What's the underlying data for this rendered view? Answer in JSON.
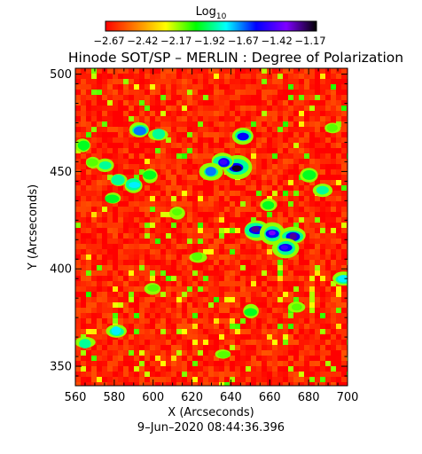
{
  "chart_data": {
    "type": "heatmap",
    "title": "Hinode SOT/SP – MERLIN : Degree of Polarization",
    "colorbar": {
      "label_base": "Log",
      "label_sub": "10",
      "tick_labels": [
        "−2.67",
        "−2.42",
        "−2.17",
        "−1.92",
        "−1.67",
        "−1.42",
        "−1.17"
      ],
      "range": [
        -2.67,
        -1.17
      ],
      "colormap": [
        "#ff0000",
        "#ff7f00",
        "#ffff00",
        "#00ff00",
        "#00ffff",
        "#0000ff",
        "#7f00ff",
        "#000000"
      ]
    },
    "xlabel": "X (Arcseconds)",
    "ylabel": "Y (Arcseconds)",
    "xlim": [
      560,
      700
    ],
    "ylim": [
      340,
      503
    ],
    "xticks": [
      560,
      580,
      600,
      620,
      640,
      660,
      680,
      700
    ],
    "yticks": [
      350,
      400,
      450,
      500
    ],
    "background_value": -2.6,
    "features": [
      {
        "x": 643,
        "y": 452,
        "value": -1.2
      },
      {
        "x": 636,
        "y": 455,
        "value": -1.5
      },
      {
        "x": 630,
        "y": 450,
        "value": -1.7
      },
      {
        "x": 653,
        "y": 420,
        "value": -1.3
      },
      {
        "x": 661,
        "y": 418,
        "value": -1.4
      },
      {
        "x": 672,
        "y": 417,
        "value": -1.3
      },
      {
        "x": 668,
        "y": 411,
        "value": -1.5
      },
      {
        "x": 646,
        "y": 468,
        "value": -1.6
      },
      {
        "x": 593,
        "y": 471,
        "value": -1.7
      },
      {
        "x": 603,
        "y": 469,
        "value": -1.9
      },
      {
        "x": 575,
        "y": 453,
        "value": -1.9
      },
      {
        "x": 582,
        "y": 446,
        "value": -1.9
      },
      {
        "x": 590,
        "y": 443,
        "value": -1.8
      },
      {
        "x": 598,
        "y": 448,
        "value": -2.0
      },
      {
        "x": 564,
        "y": 463,
        "value": -2.0
      },
      {
        "x": 569,
        "y": 455,
        "value": -2.1
      },
      {
        "x": 659,
        "y": 433,
        "value": -2.0
      },
      {
        "x": 687,
        "y": 440,
        "value": -1.9
      },
      {
        "x": 698,
        "y": 395,
        "value": -1.8
      },
      {
        "x": 650,
        "y": 378,
        "value": -2.0
      },
      {
        "x": 581,
        "y": 368,
        "value": -1.8
      },
      {
        "x": 565,
        "y": 362,
        "value": -1.9
      },
      {
        "x": 579,
        "y": 436,
        "value": -2.0
      },
      {
        "x": 612,
        "y": 429,
        "value": -2.1
      },
      {
        "x": 623,
        "y": 406,
        "value": -2.1
      },
      {
        "x": 680,
        "y": 448,
        "value": -2.0
      },
      {
        "x": 692,
        "y": 472,
        "value": -2.1
      },
      {
        "x": 600,
        "y": 390,
        "value": -2.1
      },
      {
        "x": 636,
        "y": 356,
        "value": -2.1
      },
      {
        "x": 674,
        "y": 380,
        "value": -2.1
      }
    ]
  },
  "timestamp": "9–Jun–2020 08:44:36.396"
}
